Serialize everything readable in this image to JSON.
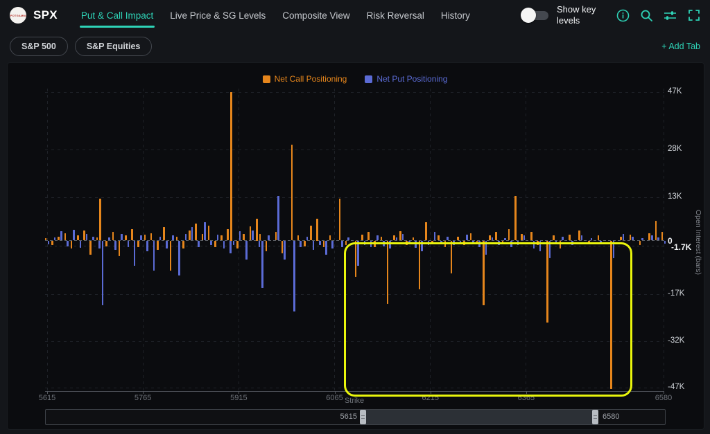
{
  "header": {
    "logo_text": "SPOTGAMMA",
    "ticker": "SPX",
    "tabs": [
      {
        "label": "Put & Call Impact",
        "active": true
      },
      {
        "label": "Live Price & SG Levels",
        "active": false
      },
      {
        "label": "Composite View",
        "active": false
      },
      {
        "label": "Risk Reversal",
        "active": false
      },
      {
        "label": "History",
        "active": false
      }
    ],
    "toggle_label": "Show key levels",
    "toggle_state": "off",
    "icons": [
      "info-icon",
      "search-icon",
      "tune-icon",
      "fullscreen-icon"
    ],
    "accent_color": "#2ed3b7"
  },
  "subheader": {
    "pills": [
      "S&P 500",
      "S&P Equities"
    ],
    "add_tab_label": "+ Add Tab"
  },
  "chart": {
    "y_axis": {
      "title": "Open Interest (bars)",
      "ticks": [
        {
          "label": "47K",
          "value": 47
        },
        {
          "label": "28K",
          "value": 28
        },
        {
          "label": "13K",
          "value": 13
        },
        {
          "label": "0",
          "value": 0
        },
        {
          "label": "-1.7K",
          "value": -1.7
        },
        {
          "label": "-17K",
          "value": -17
        },
        {
          "label": "-32K",
          "value": -32
        },
        {
          "label": "-47K",
          "value": -47
        }
      ]
    },
    "x_axis": {
      "title": "Strike",
      "ticks": [
        {
          "label": "5615",
          "value": 5615
        },
        {
          "label": "5765",
          "value": 5765
        },
        {
          "label": "5915",
          "value": 5915
        },
        {
          "label": "6065",
          "value": 6065
        },
        {
          "label": "6215",
          "value": 6215
        },
        {
          "label": "6365",
          "value": 6365
        },
        {
          "label": "6580",
          "value": 6580
        }
      ]
    },
    "slider": {
      "left_label": "5615",
      "right_label": "6580"
    }
  },
  "chart_data": {
    "type": "bar",
    "title": "",
    "xlabel": "Strike",
    "ylabel": "Open Interest (bars)",
    "unit": "thousand contracts (K)",
    "x_range": [
      5615,
      6580
    ],
    "x_tick_values": [
      5615,
      5765,
      5915,
      6065,
      6215,
      6365,
      6580
    ],
    "y_tick_labels": [
      "47K",
      "28K",
      "13K",
      "0",
      "-1.7K",
      "-17K",
      "-32K",
      "-47K"
    ],
    "legend_position": "top-center",
    "grid": "dashed",
    "series": [
      {
        "name": "Net Call Positioning",
        "color": "#e6861c",
        "key": "c"
      },
      {
        "name": "Net Put Positioning",
        "color": "#5b6bd5",
        "key": "p"
      }
    ],
    "highlight_box": {
      "strike_from": 6080,
      "strike_to": 6525,
      "value_from": -48.5,
      "value_to": -0.5,
      "color": "#e9f50c"
    },
    "bars": [
      {
        "s": 5615,
        "c": 0.8,
        "p": -1.2
      },
      {
        "s": 5625,
        "c": -1.5,
        "p": 0.9
      },
      {
        "s": 5635,
        "c": 1.2,
        "p": 2.8
      },
      {
        "s": 5645,
        "c": 2.2,
        "p": -1.8
      },
      {
        "s": 5655,
        "c": -2.5,
        "p": 3.2
      },
      {
        "s": 5665,
        "c": 1.5,
        "p": -2.2
      },
      {
        "s": 5675,
        "c": 3.0,
        "p": 2.0
      },
      {
        "s": 5685,
        "c": -4.5,
        "p": 1.2
      },
      {
        "s": 5695,
        "c": 1.0,
        "p": -2.5
      },
      {
        "s": 5700,
        "c": 12.5,
        "p": -20.5
      },
      {
        "s": 5710,
        "c": -1.8,
        "p": 1.0
      },
      {
        "s": 5720,
        "c": 2.5,
        "p": -3.0
      },
      {
        "s": 5730,
        "c": -5.0,
        "p": 2.0
      },
      {
        "s": 5740,
        "c": 1.5,
        "p": -2.0
      },
      {
        "s": 5750,
        "c": 3.5,
        "p": -8.0
      },
      {
        "s": 5760,
        "c": -2.0,
        "p": 1.5
      },
      {
        "s": 5770,
        "c": 1.8,
        "p": -3.5
      },
      {
        "s": 5780,
        "c": 2.2,
        "p": -9.5
      },
      {
        "s": 5790,
        "c": -3.0,
        "p": 1.2
      },
      {
        "s": 5800,
        "c": 4.0,
        "p": -2.5
      },
      {
        "s": 5810,
        "c": -9.5,
        "p": 1.5
      },
      {
        "s": 5820,
        "c": 1.2,
        "p": -11.0
      },
      {
        "s": 5830,
        "c": -2.5,
        "p": 2.0
      },
      {
        "s": 5840,
        "c": 3.0,
        "p": 4.0
      },
      {
        "s": 5850,
        "c": 5.0,
        "p": -2.0
      },
      {
        "s": 5860,
        "c": 2.0,
        "p": 5.5
      },
      {
        "s": 5870,
        "c": 4.5,
        "p": -1.5
      },
      {
        "s": 5880,
        "c": -2.0,
        "p": 1.8
      },
      {
        "s": 5890,
        "c": 1.5,
        "p": -2.5
      },
      {
        "s": 5900,
        "c": 3.5,
        "p": -4.0
      },
      {
        "s": 5905,
        "c": 47.0,
        "p": -1.5
      },
      {
        "s": 5915,
        "c": -2.5,
        "p": 2.8
      },
      {
        "s": 5925,
        "c": 2.0,
        "p": -6.0
      },
      {
        "s": 5935,
        "c": 4.2,
        "p": 3.0
      },
      {
        "s": 5945,
        "c": 6.5,
        "p": -2.0
      },
      {
        "s": 5950,
        "c": 2.0,
        "p": -15.0
      },
      {
        "s": 5960,
        "c": -3.5,
        "p": 1.5
      },
      {
        "s": 5975,
        "c": 2.5,
        "p": 13.5
      },
      {
        "s": 5985,
        "c": -4.0,
        "p": -6.0
      },
      {
        "s": 6000,
        "c": 29.5,
        "p": -22.5
      },
      {
        "s": 6010,
        "c": 1.5,
        "p": -2.0
      },
      {
        "s": 6020,
        "c": -1.8,
        "p": 1.2
      },
      {
        "s": 6030,
        "c": 4.5,
        "p": -3.0
      },
      {
        "s": 6040,
        "c": 6.5,
        "p": -1.5
      },
      {
        "s": 6050,
        "c": -2.0,
        "p": -4.5
      },
      {
        "s": 6060,
        "c": 1.5,
        "p": -2.5
      },
      {
        "s": 6075,
        "c": 12.5,
        "p": -2.0
      },
      {
        "s": 6085,
        "c": -1.5,
        "p": 1.0
      },
      {
        "s": 6100,
        "c": -11.5,
        "p": -8.0
      },
      {
        "s": 6110,
        "c": 1.8,
        "p": -1.5
      },
      {
        "s": 6120,
        "c": 2.5,
        "p": -2.0
      },
      {
        "s": 6130,
        "c": -2.0,
        "p": 1.5
      },
      {
        "s": 6140,
        "c": 1.2,
        "p": -1.8
      },
      {
        "s": 6150,
        "c": -20.0,
        "p": -2.5
      },
      {
        "s": 6160,
        "c": 1.5,
        "p": 1.0
      },
      {
        "s": 6170,
        "c": 2.8,
        "p": 2.0
      },
      {
        "s": 6180,
        "c": -1.5,
        "p": -1.2
      },
      {
        "s": 6190,
        "c": 1.0,
        "p": -2.2
      },
      {
        "s": 6200,
        "c": -15.5,
        "p": -3.5
      },
      {
        "s": 6210,
        "c": 5.5,
        "p": -1.5
      },
      {
        "s": 6220,
        "c": -1.2,
        "p": 2.5
      },
      {
        "s": 6230,
        "c": 1.5,
        "p": -1.0
      },
      {
        "s": 6240,
        "c": -2.0,
        "p": 1.2
      },
      {
        "s": 6250,
        "c": -10.5,
        "p": -1.5
      },
      {
        "s": 6260,
        "c": 1.2,
        "p": -1.0
      },
      {
        "s": 6270,
        "c": -1.5,
        "p": 1.8
      },
      {
        "s": 6280,
        "c": 2.2,
        "p": -1.2
      },
      {
        "s": 6290,
        "c": -1.0,
        "p": -2.0
      },
      {
        "s": 6300,
        "c": -20.5,
        "p": -4.5
      },
      {
        "s": 6310,
        "c": 1.5,
        "p": 1.0
      },
      {
        "s": 6320,
        "c": 2.5,
        "p": -1.5
      },
      {
        "s": 6330,
        "c": -1.2,
        "p": 0.8
      },
      {
        "s": 6340,
        "c": 3.5,
        "p": -2.0
      },
      {
        "s": 6350,
        "c": 13.5,
        "p": -1.5
      },
      {
        "s": 6360,
        "c": 2.0,
        "p": 1.5
      },
      {
        "s": 6375,
        "c": 2.5,
        "p": -2.5
      },
      {
        "s": 6385,
        "c": -1.5,
        "p": -3.5
      },
      {
        "s": 6400,
        "c": -26.0,
        "p": -5.5
      },
      {
        "s": 6410,
        "c": 1.5,
        "p": -1.0
      },
      {
        "s": 6420,
        "c": -2.5,
        "p": 1.2
      },
      {
        "s": 6435,
        "c": 1.8,
        "p": -1.5
      },
      {
        "s": 6450,
        "c": 3.0,
        "p": 1.5
      },
      {
        "s": 6465,
        "c": -1.2,
        "p": 0.8
      },
      {
        "s": 6480,
        "c": 1.5,
        "p": -1.2
      },
      {
        "s": 6500,
        "c": -47.5,
        "p": -5.5
      },
      {
        "s": 6515,
        "c": 1.2,
        "p": 2.0
      },
      {
        "s": 6530,
        "c": 1.8,
        "p": 1.2
      },
      {
        "s": 6545,
        "c": -1.5,
        "p": 0.8
      },
      {
        "s": 6560,
        "c": 2.2,
        "p": 1.5
      },
      {
        "s": 6570,
        "c": 6.0,
        "p": 1.0
      },
      {
        "s": 6580,
        "c": 2.5,
        "p": -1.0
      }
    ]
  }
}
